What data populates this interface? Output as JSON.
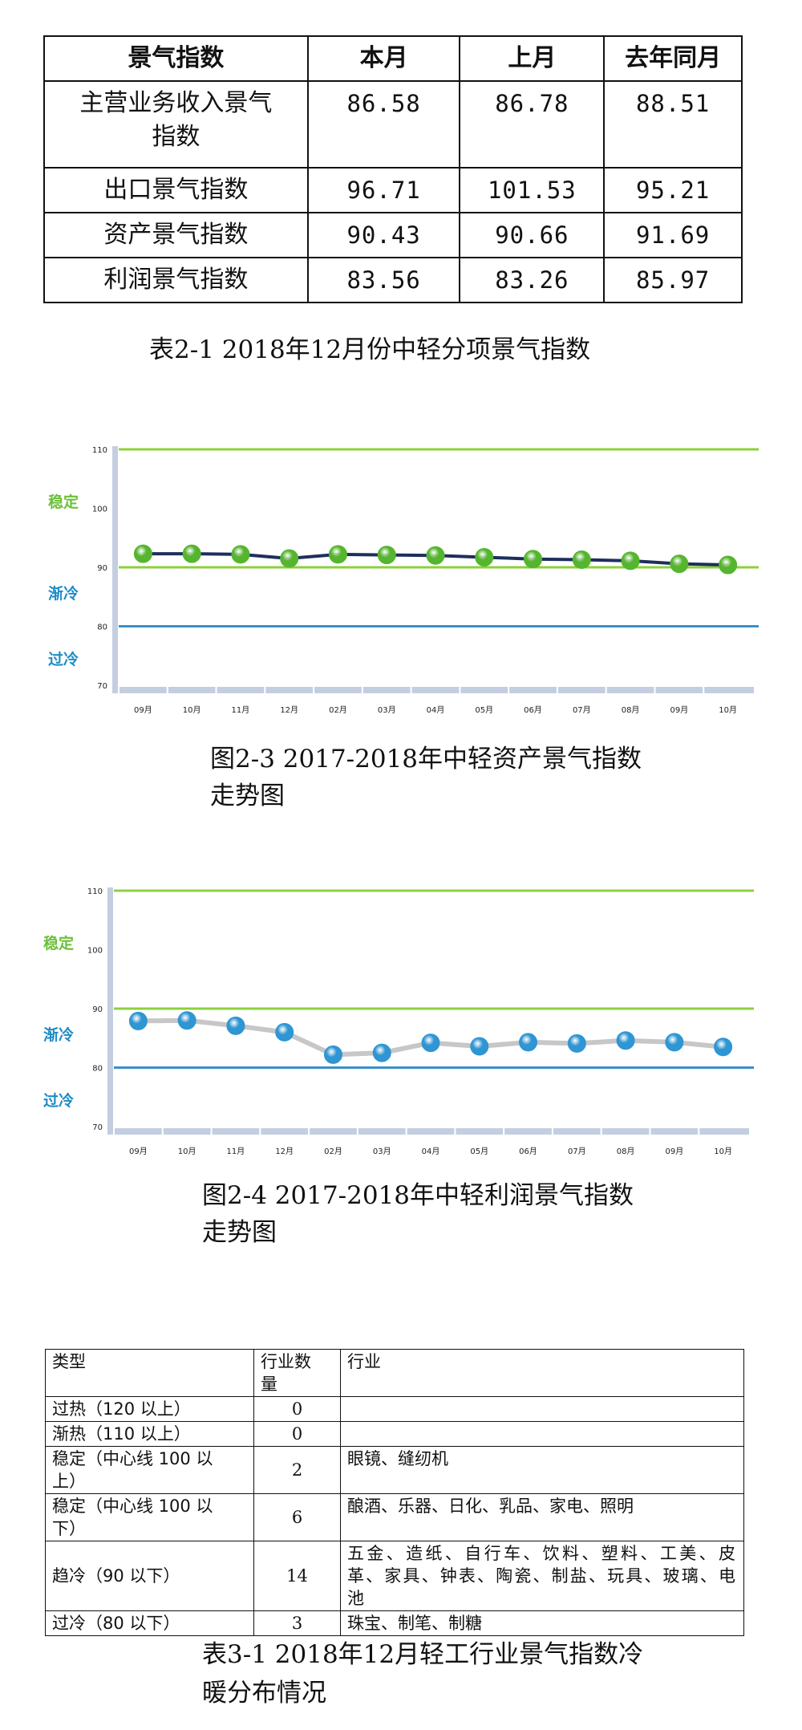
{
  "table1": {
    "headers": [
      "景气指数",
      "本月",
      "上月",
      "去年同月"
    ],
    "rows": [
      {
        "label": "主营业务收入景气\n指数",
        "cur": "86.58",
        "prev": "86.78",
        "yoy": "88.51"
      },
      {
        "label": "出口景气指数",
        "cur": "96.71",
        "prev": "101.53",
        "yoy": "95.21"
      },
      {
        "label": "资产景气指数",
        "cur": "90.43",
        "prev": "90.66",
        "yoy": "91.69"
      },
      {
        "label": "利润景气指数",
        "cur": "83.56",
        "prev": "83.26",
        "yoy": "85.97"
      }
    ]
  },
  "captions": {
    "table1": "表2-1 2018年12月份中轻分项景气指数",
    "chart1_line1": "图2-3  2017-2018年中轻资产景气指数",
    "chart1_line2": "走势图",
    "chart2_line1": "图2-4 2017-2018年中轻利润景气指数",
    "chart2_line2": "走势图",
    "table2_line1": "表3-1 2018年12月轻工行业景气指数冷",
    "table2_line2": "暖分布情况"
  },
  "zone_labels": {
    "stable": "稳定",
    "cooling": "渐冷",
    "overcold": "过冷"
  },
  "colors": {
    "green_line": "#8cd03c",
    "teal_line": "#2aa58a",
    "blue_line": "#3a8fc9",
    "axis": "#c3cfe0",
    "series1_line": "#1d2f5c",
    "series1_marker": "#55b52e",
    "series2_line": "#c7c7c7",
    "series2_marker": "#2f95d3",
    "label_green": "#6cc03a",
    "label_blue": "#1f8cc6"
  },
  "chart_data": [
    {
      "type": "line",
      "categories": [
        "09月",
        "10月",
        "11月",
        "12月",
        "02月",
        "03月",
        "04月",
        "05月",
        "06月",
        "07月",
        "08月",
        "09月",
        "10月"
      ],
      "values": [
        92.3,
        92.3,
        92.2,
        91.5,
        92.2,
        92.1,
        92.0,
        91.7,
        91.4,
        91.3,
        91.1,
        90.6,
        90.4
      ],
      "ylim": [
        70,
        110
      ],
      "yticks": [
        "70",
        "80",
        "90",
        "100",
        "110"
      ],
      "reference_lines": [
        110,
        90,
        80
      ]
    },
    {
      "type": "line",
      "categories": [
        "09月",
        "10月",
        "11月",
        "12月",
        "02月",
        "03月",
        "04月",
        "05月",
        "06月",
        "07月",
        "08月",
        "09月",
        "10月"
      ],
      "values": [
        87.9,
        88.0,
        87.1,
        86.0,
        82.2,
        82.5,
        84.2,
        83.6,
        84.3,
        84.1,
        84.6,
        84.3,
        83.5
      ],
      "ylim": [
        70,
        110
      ],
      "yticks": [
        "70",
        "80",
        "90",
        "100",
        "110"
      ],
      "reference_lines": [
        110,
        90,
        80
      ]
    }
  ],
  "table2": {
    "headers": [
      "类型",
      "行业数\n量",
      "行业"
    ],
    "rows": [
      {
        "type": "过热（120 以上）",
        "count": "0",
        "industries": ""
      },
      {
        "type": "渐热（110 以上）",
        "count": "0",
        "industries": ""
      },
      {
        "type": "稳定（中心线 100 以\n上）",
        "count": "2",
        "industries": "眼镜、缝纫机"
      },
      {
        "type": "稳定（中心线 100 以\n下）",
        "count": "6",
        "industries": "酿酒、乐器、日化、乳品、家电、照明"
      },
      {
        "type": "趋冷（90 以下）",
        "count": "14",
        "industries": "五金、造纸、自行车、饮料、塑料、工美、皮革、家具、钟表、陶瓷、制盐、玩具、玻璃、电池"
      },
      {
        "type": "过冷（80 以下）",
        "count": "3",
        "industries": "珠宝、制笔、制糖"
      }
    ]
  }
}
